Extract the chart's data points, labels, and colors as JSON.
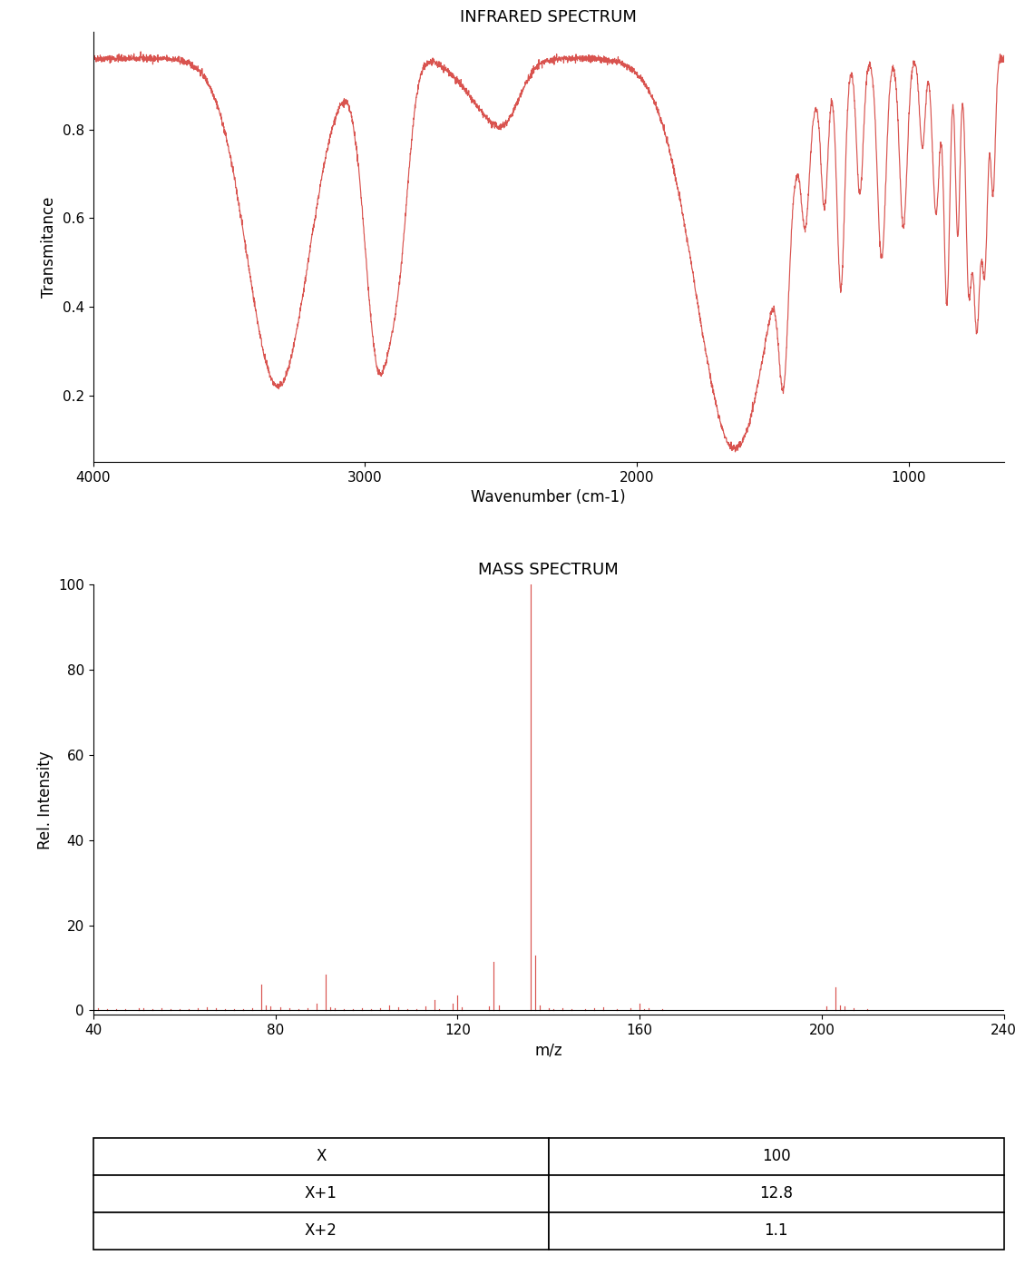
{
  "ir_title": "INFRARED SPECTRUM",
  "ir_xlabel": "Wavenumber (cm-1)",
  "ir_ylabel": "Transmitance",
  "ir_xlim": [
    4000,
    650
  ],
  "ir_ylim": [
    0.05,
    1.02
  ],
  "ir_yticks": [
    0.2,
    0.4,
    0.6,
    0.8
  ],
  "ir_xticks": [
    4000,
    3000,
    2000,
    1000
  ],
  "ms_title": "MASS SPECTRUM",
  "ms_xlabel": "m/z",
  "ms_ylabel": "Rel. Intensity",
  "ms_xlim": [
    40,
    240
  ],
  "ms_ylim": [
    -1.0,
    100
  ],
  "ms_yticks": [
    0.0,
    20,
    40,
    60,
    80,
    100
  ],
  "ms_xticks": [
    40,
    80,
    120,
    160,
    200,
    240
  ],
  "line_color": "#d9534f",
  "table_rows": [
    [
      "X",
      "100"
    ],
    [
      "X+1",
      "12.8"
    ],
    [
      "X+2",
      "1.1"
    ]
  ]
}
